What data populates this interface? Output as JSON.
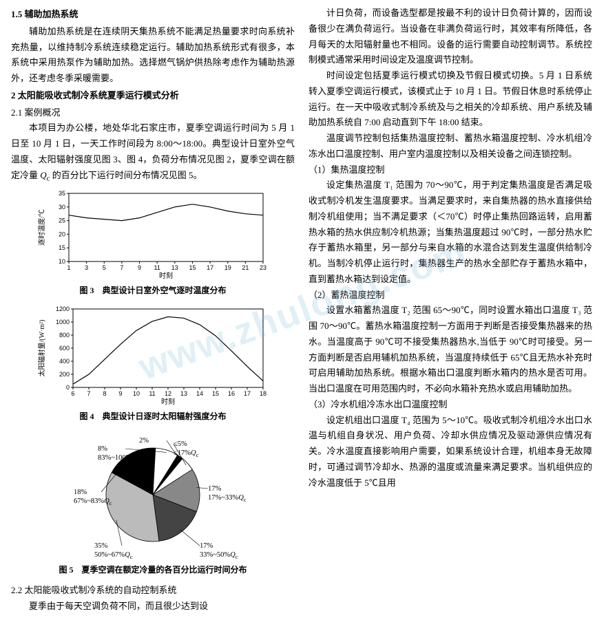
{
  "watermark": "www.zhulong.com",
  "left": {
    "h1": "1.5 辅助加热系统",
    "p1": "辅助加热系统是在连续阴天集热系统不能满足热量要求时向系统补充热量，以维持制冷系统连续稳定运行。辅助加热系统形式有很多，本系统中采用热泵作为辅助加热。选择燃气锅炉供热除考虑作为辅助热源外，还考虑冬季采暖需要。",
    "h2": "2 太阳能吸收式制冷系统夏季运行模式分析",
    "h3": "2.1 案例概况",
    "p2a": "本项目为办公楼，地处华北石家庄市，夏季空调运行时间为 5 月 1 日至 10 月 1 日，一天工作时间段为 8:00～18:00。典型设计日室外空气温度、太阳辐射强度见图 3、图 4，负荷分布情况见图 2，夏季空调在额定冷量 ",
    "p2q": "Q",
    "p2sub": "c",
    "p2b": " 的百分比下运行时间分布情况见图 5。",
    "fig3": {
      "cap": "图 3　典型设计日室外空气逐时温度分布",
      "xlabel": "时刻",
      "ylabel": "逐时温度/℃",
      "xticks": [
        1,
        3,
        5,
        7,
        9,
        11,
        13,
        15,
        17,
        19,
        21,
        23
      ],
      "yticks": [
        10,
        15,
        20,
        25,
        30,
        35
      ],
      "ylim": [
        10,
        35
      ],
      "xlim": [
        1,
        23
      ],
      "points": [
        [
          1,
          27
        ],
        [
          3,
          26
        ],
        [
          5,
          25.5
        ],
        [
          7,
          25
        ],
        [
          9,
          26
        ],
        [
          11,
          28
        ],
        [
          13,
          30
        ],
        [
          15,
          31
        ],
        [
          17,
          30
        ],
        [
          19,
          28.5
        ],
        [
          21,
          27.5
        ],
        [
          23,
          27
        ]
      ]
    },
    "fig4": {
      "cap": "图 4　典型设计日逐时太阳辐射强度分布",
      "xlabel": "时刻",
      "ylabel": "太阳辐射量/(W·m²)",
      "xticks": [
        6,
        7,
        8,
        9,
        10,
        11,
        12,
        13,
        14,
        15,
        16,
        17,
        18
      ],
      "yticks": [
        0,
        200,
        400,
        600,
        800,
        1000,
        1200
      ],
      "ylim": [
        0,
        1200
      ],
      "xlim": [
        6,
        18
      ],
      "points": [
        [
          6,
          50
        ],
        [
          7,
          200
        ],
        [
          8,
          430
        ],
        [
          9,
          660
        ],
        [
          10,
          870
        ],
        [
          11,
          1010
        ],
        [
          12,
          1080
        ],
        [
          13,
          1060
        ],
        [
          14,
          960
        ],
        [
          15,
          790
        ],
        [
          16,
          560
        ],
        [
          17,
          320
        ],
        [
          18,
          100
        ]
      ]
    },
    "fig5": {
      "cap": "图 5　夏季空调在额定冷量的各百分比运行时间分布",
      "slices": [
        {
          "pct": 17,
          "lbl": "17%\n17%~33%Qc",
          "fill": "#888"
        },
        {
          "pct": 17,
          "lbl": "17%\n33%~50%Qc",
          "fill": "#444"
        },
        {
          "pct": 35,
          "lbl": "35%\n50%~67%Qc",
          "fill": "#bbb"
        },
        {
          "pct": 18,
          "lbl": "18%\n67%~83%Qc",
          "fill": "#000"
        },
        {
          "pct": 8,
          "lbl": "8%\n83%~100%Qc",
          "fill": "#fff"
        },
        {
          "pct": 2,
          "lbl": "2%",
          "fill": "#000"
        },
        {
          "pct": 5,
          "lbl": "≤5%\n≤17%Qc",
          "fill": "#fff"
        }
      ]
    },
    "h4": "2.2 太阳能吸收式制冷系统的自动控制系统",
    "p3": "夏季由于每天空调负荷不同，而且很少达到设"
  },
  "right": {
    "p1": "计日负荷，而设备选型都是按最不利的设计日负荷计算的，因而设备很少在满负荷运行。当设备在非满负荷运行时，其效率有所降低，各月每天的太阳辐射量也不相同。设备的运行需要自动控制调节。系统控制模式通常采用时间设定及温度调节控制。",
    "p2": "时间设定包括夏季运行模式切换及节假日模式切换。5 月 1 日系统转入夏季空调运行模式，该模式止于 10 月 1 日。节假日休息时系统停止运行。在一天中吸收式制冷系统及与之相关的冷却系统、用户系统及辅助加热系统自 7:00 启动直到下午 18:00 结束。",
    "p3": "温度调节控制包括集热温度控制、蓄热水箱温度控制、冷水机组冷冻水出口温度控制、用户室内温度控制以及相关设备之间连锁控制。",
    "h1": "（1）集热温度控制",
    "p4": "设定集热温度 T₁ 范围为 70～90℃，用于判定集热温度是否满足吸收式制冷机发生温度要求。当满足要求时，来自集热器的热水直接供给制冷机组使用；当不满足要求（＜70℃）时停止集热回路运转，启用蓄热水箱的热水供应制冷机热源；当集热温度超过 90℃时，一部分热水贮存于蓄热水箱里，另一部分与来自水箱的水混合达到发生温度供给制冷机。当制冷机停止运行时，集热器生产的热水全部贮存于蓄热水箱中，直到蓄热水箱达到设定值。",
    "h2": "（2）蓄热温度控制",
    "p5": "设置水箱蓄热温度 T₂ 范围 65～90℃，同时设置水箱出口温度 T₃ 范围 70～90℃。蓄热水箱温度控制一方面用于判断是否接受集热器来的热水。当温度高于 90℃可不接受集热器热水,当低于 90℃时可接受。另一方面判断是否启用辅机加热系统，当温度持续低于 65℃且无热水补充时可启用辅助加热系统。根据水箱出口温度判断水箱内的热水是否可用。当出口温度在可用范围内时，不必向水箱补充热水或启用辅助加热。",
    "h3": "（3）冷水机组冷冻水出口温度控制",
    "p6": "设定机组出口温度 T₄ 范围为 5～10℃。吸收式制冷机组冷水出口水温与机组自身状况、用户负荷、冷却水供应情况及驱动源供应情况有关。冷水温度直接影响用户需要，如果系统设计合理，机组本身无故障时，可通过调节冷却水、热源的温度或流量来满足要求。当机组供应的冷水温度低于 5℃且用"
  }
}
